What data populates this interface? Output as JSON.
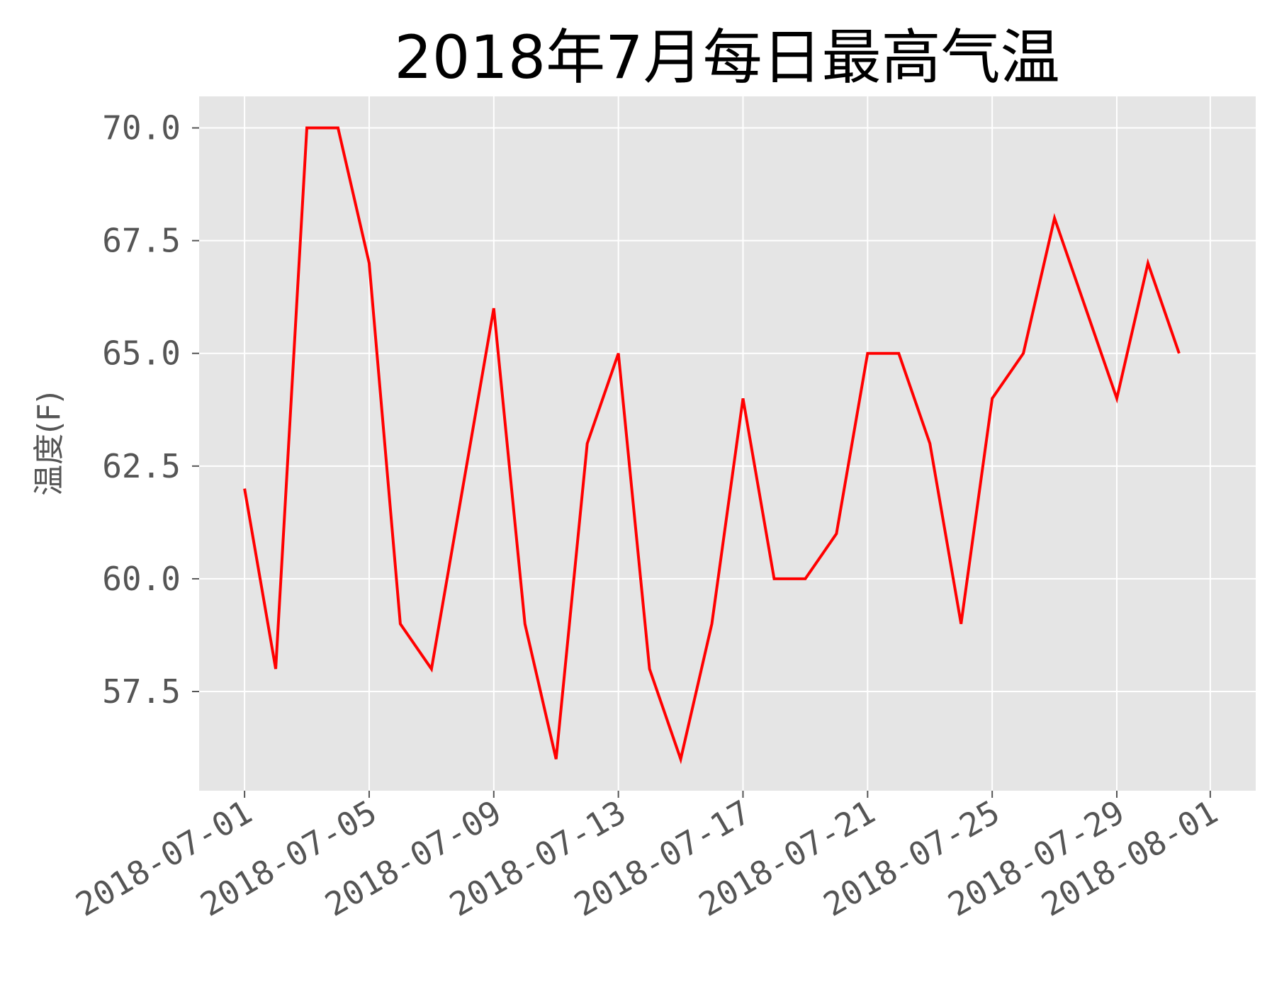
{
  "chart_data": {
    "type": "line",
    "title": "2018年7月每日最高气温",
    "xlabel": "",
    "ylabel": "温度(F)",
    "x": [
      "2018-07-01",
      "2018-07-02",
      "2018-07-03",
      "2018-07-04",
      "2018-07-05",
      "2018-07-06",
      "2018-07-07",
      "2018-07-08",
      "2018-07-09",
      "2018-07-10",
      "2018-07-11",
      "2018-07-12",
      "2018-07-13",
      "2018-07-14",
      "2018-07-15",
      "2018-07-16",
      "2018-07-17",
      "2018-07-18",
      "2018-07-19",
      "2018-07-20",
      "2018-07-21",
      "2018-07-22",
      "2018-07-23",
      "2018-07-24",
      "2018-07-25",
      "2018-07-26",
      "2018-07-27",
      "2018-07-28",
      "2018-07-29",
      "2018-07-30",
      "2018-07-31"
    ],
    "series": [
      {
        "values": [
          62,
          58,
          70,
          70,
          67,
          59,
          58,
          62,
          66,
          59,
          56,
          63,
          65,
          58,
          56,
          59,
          64,
          60,
          60,
          61,
          65,
          65,
          63,
          59,
          64,
          65,
          68,
          66,
          64,
          67,
          65
        ],
        "color": "#ff0000"
      }
    ],
    "xlim": [
      "2018-06-29 13:00",
      "2018-08-02 11:00"
    ],
    "ylim": [
      55.3,
      70.7
    ],
    "x_ticks": [
      "2018-07-01",
      "2018-07-05",
      "2018-07-09",
      "2018-07-13",
      "2018-07-17",
      "2018-07-21",
      "2018-07-25",
      "2018-07-29",
      "2018-08-01"
    ],
    "y_ticks": [
      "57.5",
      "60.0",
      "62.5",
      "65.0",
      "67.5",
      "70.0"
    ],
    "grid": true,
    "style": "ggplot",
    "plot_background": "#e5e5e5",
    "grid_color": "#ffffff"
  }
}
